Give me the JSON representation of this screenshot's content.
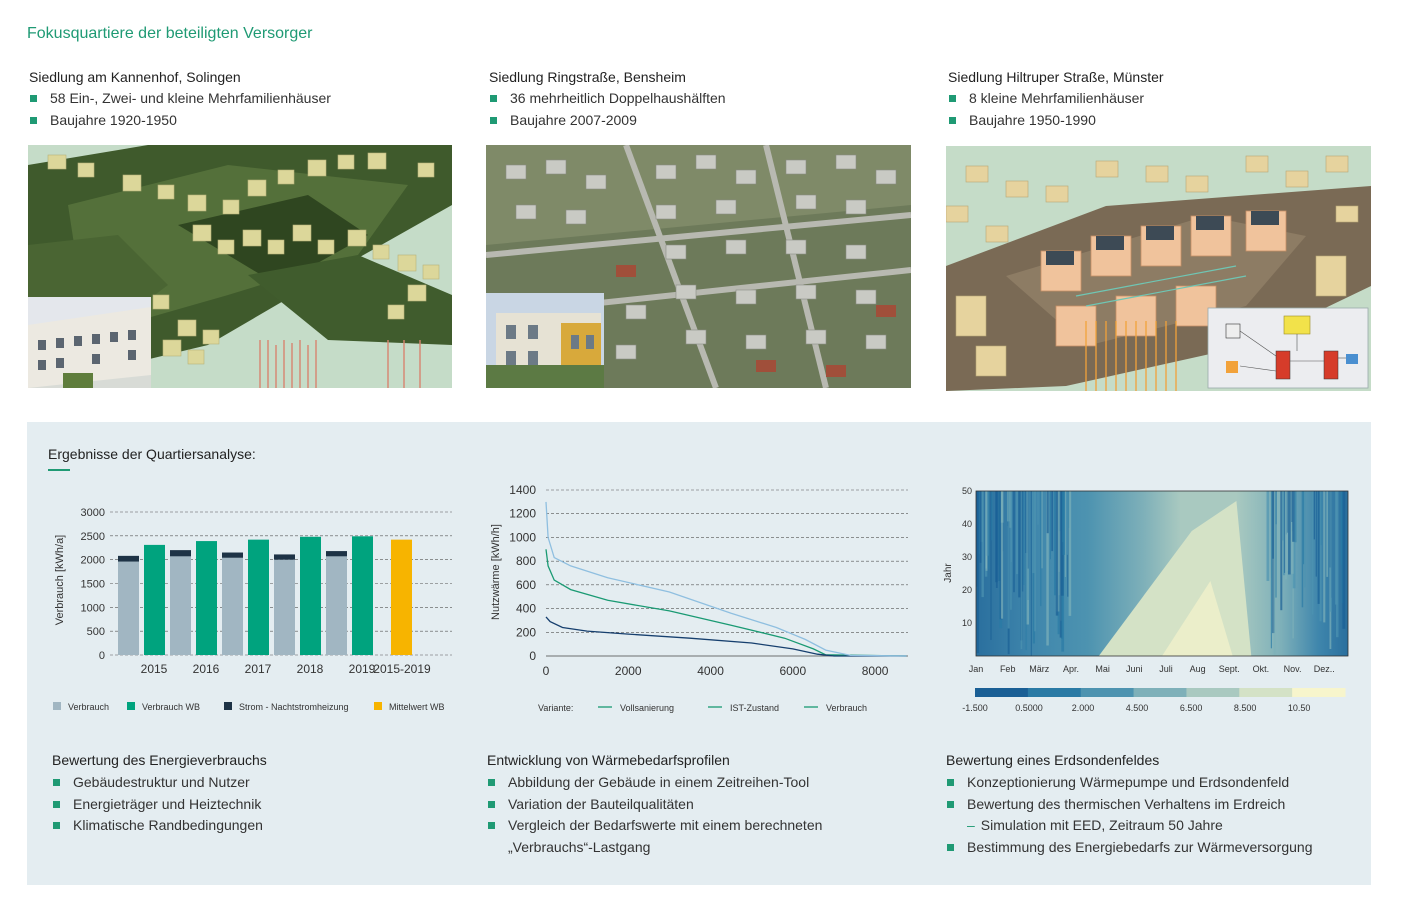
{
  "page_title": "Fokusquartiere der beteiligten Versorger",
  "sites": [
    {
      "title": "Siedlung am Kannenhof, Solingen",
      "bullets": [
        "58 Ein-, Zwei- und kleine Mehrfamilienhäuser",
        "Baujahre 1920-1950"
      ]
    },
    {
      "title": "Siedlung Ringstraße, Bensheim",
      "bullets": [
        "36 mehrheitlich Doppelhaushälften",
        "Baujahre 2007-2009"
      ]
    },
    {
      "title": "Siedlung Hiltruper Straße, Münster",
      "bullets": [
        "8 kleine Mehrfamilienhäuser",
        "Baujahre 1950-1990"
      ]
    }
  ],
  "results_title": "Ergebnisse der Quartiersanalyse:",
  "colors": {
    "accent": "#1f9a74",
    "verbrauch": "#a1b6c2",
    "verbrauch_wb": "#00a37e",
    "strom": "#1e3346",
    "mittelwert": "#f7b400"
  },
  "chart_data": [
    {
      "type": "bar",
      "ylabel": "Verbrauch [kWh/a]",
      "ylim": [
        0,
        3000
      ],
      "yticks": [
        "3000",
        "2500",
        "2000",
        "1500",
        "1000",
        "500",
        "0"
      ],
      "categories": [
        "2015",
        "2016",
        "2017",
        "2018",
        "2019",
        "2015-2019"
      ],
      "series": [
        {
          "name": "Verbrauch",
          "values": [
            1960,
            2070,
            2040,
            2000,
            2070,
            null
          ]
        },
        {
          "name": "Strom - Nachtstromheizung",
          "values": [
            120,
            130,
            110,
            110,
            110,
            null
          ]
        },
        {
          "name": "Verbrauch WB",
          "values": [
            2310,
            2390,
            2420,
            2480,
            2490,
            null
          ]
        },
        {
          "name": "Mittelwert WB",
          "values": [
            null,
            null,
            null,
            null,
            null,
            2420
          ]
        }
      ],
      "legend": [
        "Verbrauch",
        "Verbrauch WB",
        "Strom - Nachtstromheizung",
        "Mittelwert WB"
      ],
      "grid": true
    },
    {
      "type": "line",
      "ylabel": "Nutzwärme [kWh/h]",
      "xlim": [
        0,
        8760
      ],
      "ylim": [
        0,
        1400
      ],
      "yticks": [
        "1400",
        "1200",
        "1000",
        "800",
        "600",
        "400",
        "200",
        "0"
      ],
      "xticks": [
        "0",
        "2000",
        "4000",
        "6000",
        "8000"
      ],
      "legend_prefix": "Variante:",
      "series": [
        {
          "name": "Vollsanierung",
          "color": "#1a9a73",
          "points": [
            [
              0,
              900
            ],
            [
              50,
              760
            ],
            [
              200,
              640
            ],
            [
              600,
              560
            ],
            [
              1500,
              470
            ],
            [
              3000,
              380
            ],
            [
              4500,
              260
            ],
            [
              5800,
              150
            ],
            [
              6500,
              60
            ],
            [
              6800,
              10
            ],
            [
              8760,
              0
            ]
          ]
        },
        {
          "name": "IST-Zustand",
          "color": "#163f6e",
          "points": [
            [
              0,
              330
            ],
            [
              100,
              290
            ],
            [
              400,
              240
            ],
            [
              1000,
              210
            ],
            [
              2000,
              185
            ],
            [
              3500,
              150
            ],
            [
              5000,
              110
            ],
            [
              6000,
              60
            ],
            [
              6600,
              15
            ],
            [
              7000,
              0
            ],
            [
              8760,
              0
            ]
          ]
        },
        {
          "name": "Verbrauch",
          "color": "#8fbfe0",
          "points": [
            [
              0,
              1300
            ],
            [
              50,
              1000
            ],
            [
              200,
              830
            ],
            [
              600,
              760
            ],
            [
              1500,
              660
            ],
            [
              3000,
              540
            ],
            [
              4500,
              360
            ],
            [
              5600,
              240
            ],
            [
              6300,
              140
            ],
            [
              6800,
              50
            ],
            [
              7400,
              5
            ],
            [
              8760,
              0
            ]
          ]
        }
      ],
      "grid": true
    },
    {
      "type": "heatmap",
      "ylabel": "Jahr",
      "ylim": [
        0,
        50
      ],
      "yticks": [
        "50",
        "40",
        "30",
        "20",
        "10"
      ],
      "xticks": [
        "Jan",
        "Feb",
        "März",
        "Apr.",
        "Mai",
        "Juni",
        "Juli",
        "Aug",
        "Sept.",
        "Okt.",
        "Nov.",
        "Dez.."
      ],
      "colorbar_ticks": [
        "-1.500",
        "0.5000",
        "2.000",
        "4.500",
        "6.500",
        "8.500",
        "10.50"
      ],
      "colorbar_colors": [
        "#1a5f95",
        "#2a7aa5",
        "#4d93b0",
        "#7eb0b9",
        "#a9c9c0",
        "#d4e2c6",
        "#f7f5cc"
      ]
    }
  ],
  "sections": [
    {
      "title": "Bewertung des Energieverbrauchs",
      "bullets": [
        "Gebäudestruktur und Nutzer",
        "Energieträger und Heiztechnik",
        "Klimatische Randbedingungen"
      ]
    },
    {
      "title": "Entwicklung von Wärmebedarfsprofilen",
      "bullets": [
        "Abbildung der Gebäude in einem Zeitreihen-Tool",
        "Variation der Bauteilqualitäten",
        "Vergleich der Bedarfswerte mit einem berechneten",
        "„Verbrauchs“-Lastgang"
      ]
    },
    {
      "title": "Bewertung eines Erdsondenfeldes",
      "bullets": [
        "Konzeptionierung Wärmepumpe und Erdsondenfeld",
        "Bewertung des thermischen Verhaltens im Erdreich",
        "Simulation mit EED, Zeitraum 50 Jahre",
        "Bestimmung des Energiebedarfs zur Wärmeversorgung"
      ]
    }
  ]
}
